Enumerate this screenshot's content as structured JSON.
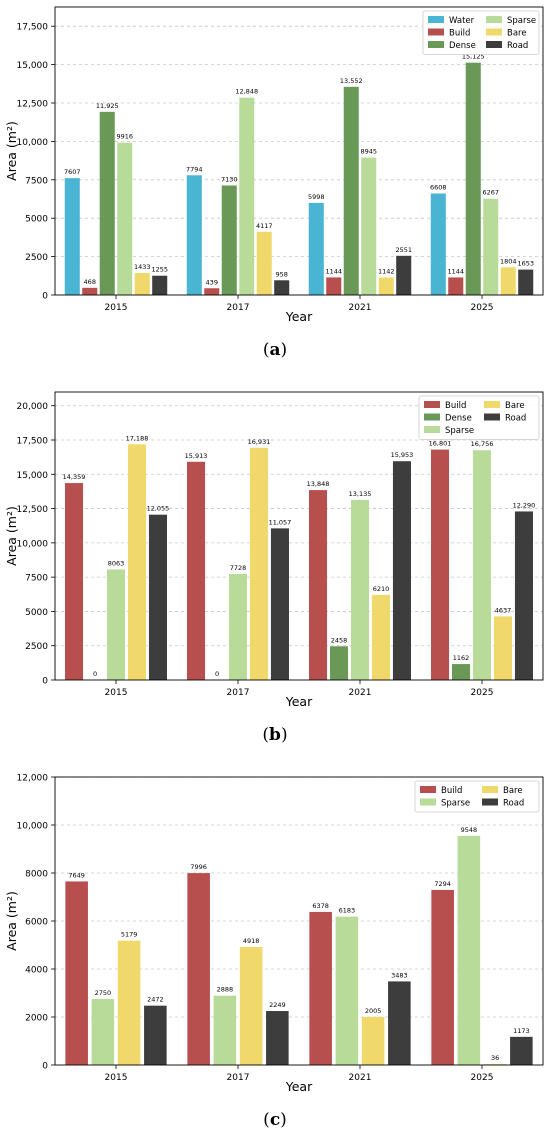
{
  "colors": {
    "Water": "#4ab4d3",
    "Build": "#b84f4f",
    "Dense": "#6a9957",
    "Sparse": "#b8db9a",
    "Bare": "#f1d86a",
    "Road": "#3d3d3d"
  },
  "panels": [
    {
      "id": "a",
      "caption_open": "(",
      "caption_letter": "a",
      "caption_close": ")"
    },
    {
      "id": "b",
      "caption_open": "(",
      "caption_letter": "b",
      "caption_close": ")"
    },
    {
      "id": "c",
      "caption_open": "(",
      "caption_letter": "c",
      "caption_close": ")"
    }
  ],
  "chart_data": [
    {
      "type": "bar",
      "xlabel": "Year",
      "ylabel": "Area (m²)",
      "categories": [
        "2015",
        "2017",
        "2021",
        "2025"
      ],
      "ylim": [
        0,
        18750
      ],
      "yticks": [
        0,
        2500,
        5000,
        7500,
        10000,
        12500,
        15000,
        17500
      ],
      "ytick_labels": [
        "0",
        "2500",
        "5000",
        "7500",
        "10,000",
        "12,500",
        "15,000",
        "17,500"
      ],
      "grid": true,
      "legend": "top-right",
      "legend_columns": [
        [
          "Water",
          "Build",
          "Dense"
        ],
        [
          "Sparse",
          "Bare",
          "Road"
        ]
      ],
      "series": [
        {
          "name": "Water",
          "values": [
            7607,
            7794,
            5998,
            6608
          ],
          "labels": [
            "7607",
            "7794",
            "5998",
            "6608"
          ]
        },
        {
          "name": "Build",
          "values": [
            468,
            439,
            1144,
            1144
          ],
          "labels": [
            "468",
            "439",
            "1144",
            "1144"
          ]
        },
        {
          "name": "Dense",
          "values": [
            11925,
            7130,
            13552,
            15125
          ],
          "labels": [
            "11,925",
            "7130",
            "13,552",
            "15,125"
          ]
        },
        {
          "name": "Sparse",
          "values": [
            9916,
            12848,
            8945,
            6267
          ],
          "labels": [
            "9916",
            "12,848",
            "8945",
            "6267"
          ]
        },
        {
          "name": "Bare",
          "values": [
            1433,
            4117,
            1142,
            1804
          ],
          "labels": [
            "1433",
            "4117",
            "1142",
            "1804"
          ]
        },
        {
          "name": "Road",
          "values": [
            1255,
            958,
            2551,
            1653
          ],
          "labels": [
            "1255",
            "958",
            "2551",
            "1653"
          ]
        }
      ]
    },
    {
      "type": "bar",
      "xlabel": "Year",
      "ylabel": "Area (m²)",
      "categories": [
        "2015",
        "2017",
        "2021",
        "2025"
      ],
      "ylim": [
        0,
        21000
      ],
      "yticks": [
        0,
        2500,
        5000,
        7500,
        10000,
        12500,
        15000,
        17500,
        20000
      ],
      "ytick_labels": [
        "0",
        "2500",
        "5000",
        "7500",
        "10,000",
        "12,500",
        "15,000",
        "17,500",
        "20,000"
      ],
      "grid": true,
      "legend": "top-right",
      "legend_columns": [
        [
          "Build",
          "Dense",
          "Sparse"
        ],
        [
          "Bare",
          "Road"
        ]
      ],
      "series": [
        {
          "name": "Build",
          "values": [
            14359,
            15913,
            13848,
            16801
          ],
          "labels": [
            "14,359",
            "15,913",
            "13,848",
            "16,801"
          ]
        },
        {
          "name": "Dense",
          "values": [
            0,
            0,
            2458,
            1162
          ],
          "labels": [
            "0",
            "0",
            "2458",
            "1162"
          ]
        },
        {
          "name": "Sparse",
          "values": [
            8063,
            7728,
            13135,
            16756
          ],
          "labels": [
            "8063",
            "7728",
            "13,135",
            "16,756"
          ]
        },
        {
          "name": "Bare",
          "values": [
            17188,
            16931,
            6210,
            4637
          ],
          "labels": [
            "17,188",
            "16,931",
            "6210",
            "4637"
          ]
        },
        {
          "name": "Road",
          "values": [
            12055,
            11057,
            15953,
            12290
          ],
          "labels": [
            "12,055",
            "11,057",
            "15,953",
            "12,290"
          ]
        }
      ]
    },
    {
      "type": "bar",
      "xlabel": "Year",
      "ylabel": "Area (m²)",
      "categories": [
        "2015",
        "2017",
        "2021",
        "2025"
      ],
      "ylim": [
        0,
        12000
      ],
      "yticks": [
        0,
        2000,
        4000,
        6000,
        8000,
        10000,
        12000
      ],
      "ytick_labels": [
        "0",
        "2000",
        "4000",
        "6000",
        "8000",
        "10,000",
        "12,000"
      ],
      "grid": true,
      "legend": "top-right",
      "legend_columns": [
        [
          "Build",
          "Sparse"
        ],
        [
          "Bare",
          "Road"
        ]
      ],
      "series": [
        {
          "name": "Build",
          "values": [
            7649,
            7996,
            6378,
            7294
          ],
          "labels": [
            "7649",
            "7996",
            "6378",
            "7294"
          ]
        },
        {
          "name": "Sparse",
          "values": [
            2750,
            2888,
            6183,
            9548
          ],
          "labels": [
            "2750",
            "2888",
            "6183",
            "9548"
          ]
        },
        {
          "name": "Bare",
          "values": [
            5179,
            4918,
            2005,
            36
          ],
          "labels": [
            "5179",
            "4918",
            "2005",
            "36"
          ]
        },
        {
          "name": "Road",
          "values": [
            2472,
            2249,
            3483,
            1173
          ],
          "labels": [
            "2472",
            "2249",
            "3483",
            "1173"
          ]
        }
      ]
    }
  ]
}
